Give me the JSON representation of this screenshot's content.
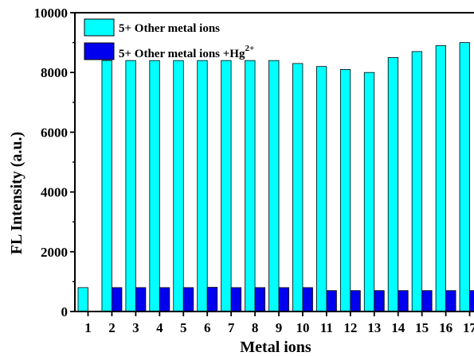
{
  "chart_data": {
    "type": "bar",
    "title": "",
    "xlabel": "Metal ions",
    "ylabel": "FL Intensity (a.u.)",
    "ylim": [
      0,
      10000
    ],
    "yticks": [
      "0",
      "2000",
      "4000",
      "6000",
      "8000",
      "10000"
    ],
    "categories": [
      "1",
      "2",
      "3",
      "4",
      "5",
      "6",
      "7",
      "8",
      "9",
      "10",
      "11",
      "12",
      "13",
      "14",
      "15",
      "16",
      "17"
    ],
    "series": [
      {
        "name": "5+ Other metal ions",
        "color": "#00FFFF",
        "values": [
          800,
          8400,
          8400,
          8400,
          8400,
          8400,
          8400,
          8400,
          8400,
          8300,
          8200,
          8100,
          8000,
          8500,
          8700,
          8900,
          9000
        ]
      },
      {
        "name": "5+ Other metal ions +Hg",
        "name_superscript": "2+",
        "color": "#0000EE",
        "values": [
          null,
          800,
          800,
          800,
          800,
          810,
          800,
          800,
          800,
          800,
          700,
          700,
          700,
          700,
          700,
          700,
          700
        ]
      }
    ],
    "grid": false,
    "legend_position": "top-left"
  }
}
